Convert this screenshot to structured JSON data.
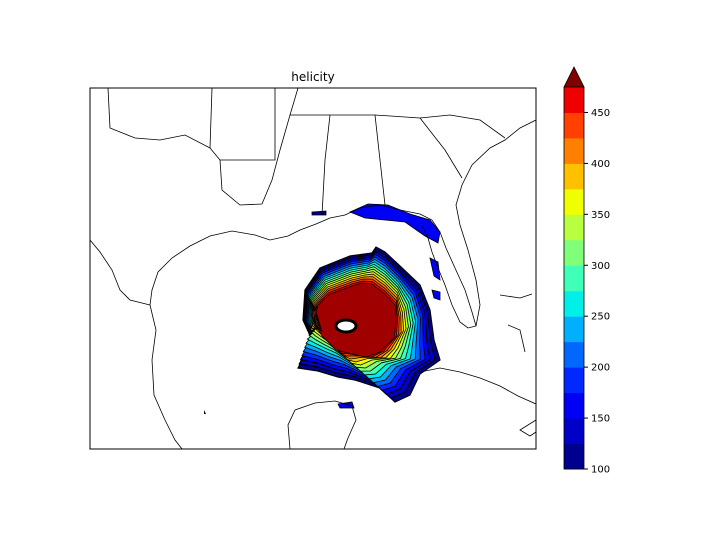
{
  "title": "helicity",
  "colorbar": {
    "levels": [
      100,
      125,
      150,
      175,
      200,
      225,
      250,
      275,
      300,
      325,
      350,
      375,
      400,
      425,
      450,
      475
    ],
    "tick_labels": [
      "100",
      "150",
      "200",
      "250",
      "300",
      "350",
      "400",
      "450"
    ],
    "extend": "max",
    "colors": [
      "#00008f",
      "#0000c8",
      "#0000f5",
      "#0028ff",
      "#0068ff",
      "#00b0ff",
      "#00f0e8",
      "#40ffb8",
      "#80ff78",
      "#b8ff40",
      "#f0ff00",
      "#ffc000",
      "#ff8000",
      "#ff4000",
      "#f00000",
      "#a00000"
    ],
    "extend_color": "#800000"
  },
  "map": {
    "region": "Gulf of Mexico",
    "field": "helicity",
    "eye_color": "#ffffff"
  }
}
